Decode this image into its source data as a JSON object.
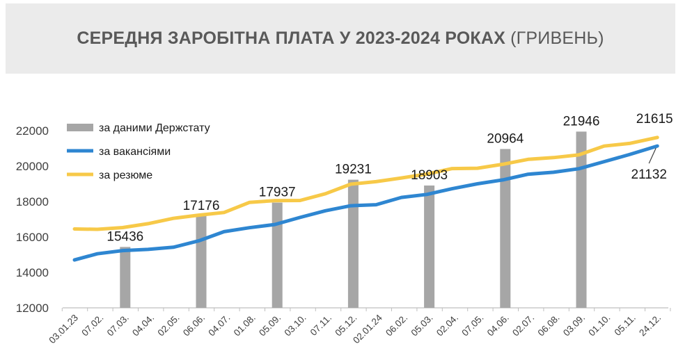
{
  "header": {
    "title_main": "СЕРЕДНЯ ЗАРОБІТНА ПЛАТА У 2023-2024 РОКАХ",
    "title_unit": "(ГРИВЕНЬ)"
  },
  "chart_data": {
    "type": "bar+line",
    "title": "СЕРЕДНЯ ЗАРОБІТНА ПЛАТА У 2023-2024 РОКАХ (ГРИВЕНЬ)",
    "ylim": [
      12000,
      22000
    ],
    "yticks": [
      "12000",
      "14000",
      "16000",
      "18000",
      "20000",
      "22000"
    ],
    "grid": false,
    "legend_position": "top-left",
    "categories": [
      "03.01.23",
      "07.02.",
      "07.03.",
      "04.04.",
      "02.05.",
      "06.06.",
      "04.07.",
      "01.08.",
      "05.09.",
      "03.10.",
      "07.11.",
      "05.12.",
      "02.01.24",
      "06.02.",
      "05.03.",
      "02.04.",
      "07.05.",
      "04.06.",
      "02.07.",
      "06.08.",
      "03.09.",
      "01.10.",
      "05.11.",
      "24.12."
    ],
    "bars": {
      "name": "за даними Держстату",
      "color": "#a6a6a6",
      "points": [
        {
          "x": 2.0,
          "value": 15436,
          "label": "15436"
        },
        {
          "x": 5.0,
          "value": 17176,
          "label": "17176"
        },
        {
          "x": 8.0,
          "value": 17937,
          "label": "17937"
        },
        {
          "x": 11.0,
          "value": 19231,
          "label": "19231"
        },
        {
          "x": 14.0,
          "value": 18903,
          "label": "18903"
        },
        {
          "x": 17.0,
          "value": 20964,
          "label": "20964"
        },
        {
          "x": 20.0,
          "value": 21946,
          "label": "21946"
        }
      ]
    },
    "series": [
      {
        "name": "за вакансіями",
        "color": "#2e86d1",
        "x": [
          0,
          0.9,
          1.9,
          2.9,
          3.9,
          4.9,
          5.9,
          6.9,
          7.9,
          8.9,
          9.9,
          10.9,
          11.9,
          12.9,
          13.9,
          14.9,
          15.9,
          16.9,
          17.9,
          18.9,
          19.9,
          20.9,
          21.9,
          23.0
        ],
        "values": [
          14700,
          15050,
          15230,
          15300,
          15420,
          15780,
          16300,
          16520,
          16700,
          17100,
          17480,
          17760,
          17820,
          18230,
          18400,
          18720,
          19000,
          19220,
          19540,
          19650,
          19850,
          20250,
          20650,
          21132
        ],
        "end_label": "21132"
      },
      {
        "name": "за резюме",
        "color": "#f7c948",
        "x": [
          0,
          0.9,
          1.9,
          2.9,
          3.9,
          4.9,
          5.9,
          6.9,
          7.9,
          8.9,
          9.9,
          10.9,
          11.9,
          12.9,
          13.9,
          14.9,
          15.9,
          16.9,
          17.9,
          18.9,
          19.9,
          20.9,
          21.9,
          23.0
        ],
        "values": [
          16450,
          16430,
          16530,
          16750,
          17050,
          17230,
          17380,
          17950,
          18050,
          18060,
          18440,
          18980,
          19120,
          19330,
          19550,
          19860,
          19880,
          20100,
          20380,
          20480,
          20630,
          21130,
          21280,
          21615
        ],
        "end_label": "21615"
      }
    ]
  }
}
